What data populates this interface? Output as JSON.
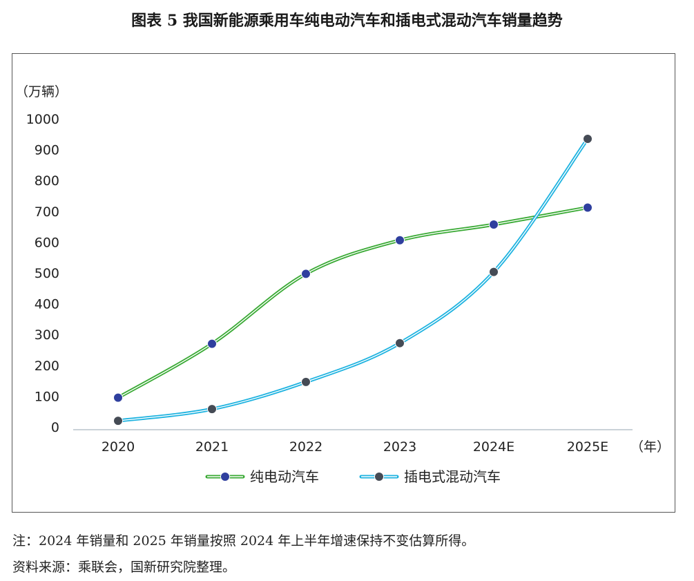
{
  "figure": {
    "title": "图表 5  我国新能源乘用车纯电动汽车和插电式混动汽车销量趋势",
    "note": "注：2024 年销量和 2025 年销量按照 2024 年上半年增速保持不变估算所得。",
    "source": "资料来源：乘联会，国新研究院整理。"
  },
  "chart_data": {
    "type": "line",
    "categories": [
      "2020",
      "2021",
      "2022",
      "2023",
      "2024E",
      "2025E"
    ],
    "ylabel": "（万辆）",
    "xlabel": "（年）",
    "ylim": [
      0,
      1000
    ],
    "yticks": [
      "0",
      "100",
      "200",
      "300",
      "400",
      "500",
      "600",
      "700",
      "800",
      "900",
      "1000"
    ],
    "grid": false,
    "legend_position": "bottom",
    "series": [
      {
        "name": "纯电动汽车",
        "values": [
          95,
          270,
          497,
          606,
          657,
          712
        ],
        "line_color": "#3aaa35",
        "marker_color": "#2f3f9e"
      },
      {
        "name": "插电式混动汽车",
        "values": [
          20,
          58,
          146,
          272,
          503,
          935
        ],
        "line_color": "#1fb3e0",
        "marker_color": "#454b55"
      }
    ]
  }
}
